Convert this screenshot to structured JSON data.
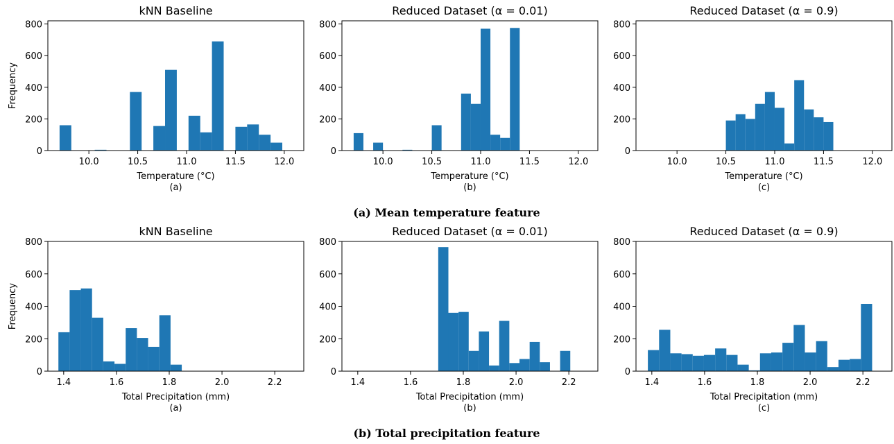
{
  "figure": {
    "caption_a": "(a) Mean temperature feature",
    "caption_b": "(b) Total precipitation feature"
  },
  "chart_data": [
    {
      "type": "bar",
      "title": "kNN Baseline",
      "xlabel": "Temperature (°C)",
      "sublabel": "(a)",
      "ylabel": "Frequency",
      "xlim": [
        9.58,
        12.2
      ],
      "ylim": [
        0,
        820
      ],
      "xticks": [
        "10.0",
        "10.5",
        "11.0",
        "11.5",
        "12.0"
      ],
      "yticks": [
        "0",
        "200",
        "400",
        "600",
        "800"
      ],
      "bin_start": 9.7,
      "bin_width": 0.12,
      "values": [
        160,
        0,
        0,
        5,
        0,
        0,
        370,
        0,
        155,
        510,
        0,
        220,
        115,
        690,
        0,
        150,
        165,
        100,
        50
      ]
    },
    {
      "type": "bar",
      "title": "Reduced Dataset (α = 0.01)",
      "xlabel": "Temperature (°C)",
      "sublabel": "(b)",
      "ylabel": "",
      "xlim": [
        9.58,
        12.2
      ],
      "ylim": [
        0,
        820
      ],
      "xticks": [
        "10.0",
        "10.5",
        "11.0",
        "11.5",
        "12.0"
      ],
      "yticks": [
        "0",
        "200",
        "400",
        "600",
        "800"
      ],
      "bin_start": 9.7,
      "bin_width": 0.1,
      "values": [
        110,
        0,
        50,
        0,
        0,
        5,
        0,
        0,
        160,
        0,
        0,
        360,
        295,
        770,
        100,
        80,
        775,
        0,
        0,
        0
      ]
    },
    {
      "type": "bar",
      "title": "Reduced Dataset (α = 0.9)",
      "xlabel": "Temperature (°C)",
      "sublabel": "(c)",
      "ylabel": "",
      "xlim": [
        9.58,
        12.2
      ],
      "ylim": [
        0,
        820
      ],
      "xticks": [
        "10.0",
        "10.5",
        "11.0",
        "11.5",
        "12.0"
      ],
      "yticks": [
        "0",
        "200",
        "400",
        "600",
        "800"
      ],
      "bin_start": 10.5,
      "bin_width": 0.1,
      "values": [
        190,
        230,
        200,
        295,
        370,
        270,
        45,
        445,
        260,
        210,
        180
      ]
    },
    {
      "type": "bar",
      "title": "kNN Baseline",
      "xlabel": "Total Precipitation (mm)",
      "sublabel": "(a)",
      "ylabel": "Frequency",
      "xlim": [
        1.34,
        2.31
      ],
      "ylim": [
        0,
        800
      ],
      "xticks": [
        "1.4",
        "1.6",
        "1.8",
        "2.0",
        "2.2"
      ],
      "yticks": [
        "0",
        "200",
        "400",
        "600",
        "800"
      ],
      "bin_start": 1.38,
      "bin_width": 0.0425,
      "values": [
        240,
        500,
        510,
        330,
        60,
        45,
        265,
        205,
        150,
        345,
        40
      ]
    },
    {
      "type": "bar",
      "title": "Reduced Dataset (α = 0.01)",
      "xlabel": "Total Precipitation (mm)",
      "sublabel": "(b)",
      "ylabel": "",
      "xlim": [
        1.34,
        2.31
      ],
      "ylim": [
        0,
        800
      ],
      "xticks": [
        "1.4",
        "1.6",
        "1.8",
        "2.0",
        "2.2"
      ],
      "yticks": [
        "0",
        "200",
        "400",
        "600",
        "800"
      ],
      "bin_start": 1.705,
      "bin_width": 0.0385,
      "values": [
        765,
        360,
        365,
        125,
        245,
        35,
        310,
        50,
        75,
        180,
        55,
        0,
        125
      ]
    },
    {
      "type": "bar",
      "title": "Reduced Dataset (α = 0.9)",
      "xlabel": "Total Precipitation (mm)",
      "sublabel": "(c)",
      "ylabel": "",
      "xlim": [
        1.34,
        2.31
      ],
      "ylim": [
        0,
        800
      ],
      "xticks": [
        "1.4",
        "1.6",
        "1.8",
        "2.0",
        "2.2"
      ],
      "yticks": [
        "0",
        "200",
        "400",
        "600",
        "800"
      ],
      "bin_start": 1.385,
      "bin_width": 0.0425,
      "values": [
        130,
        255,
        110,
        105,
        95,
        100,
        140,
        100,
        40,
        5,
        110,
        115,
        175,
        285,
        115,
        185,
        25,
        70,
        75,
        415
      ]
    }
  ]
}
